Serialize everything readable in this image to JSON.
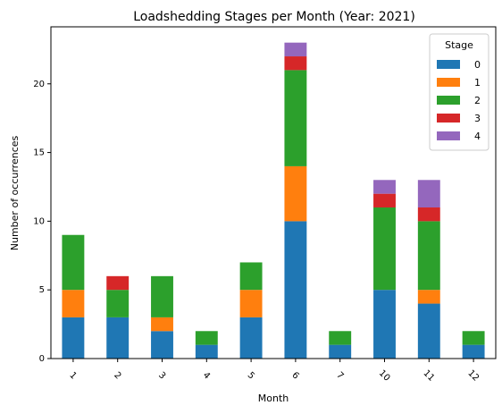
{
  "chart_data": {
    "type": "bar",
    "stacked": true,
    "title": "Loadshedding Stages per Month (Year: 2021)",
    "xlabel": "Month",
    "ylabel": "Number of occurrences",
    "categories": [
      "1",
      "2",
      "3",
      "4",
      "5",
      "6",
      "7",
      "10",
      "11",
      "12"
    ],
    "ylim": [
      0,
      24.15
    ],
    "yticks": [
      0,
      5,
      10,
      15,
      20
    ],
    "legend_title": "Stage",
    "legend_position": "top-right",
    "series": [
      {
        "name": "0",
        "color": "#1f77b4",
        "values": [
          3,
          3,
          2,
          1,
          3,
          10,
          1,
          5,
          4,
          1
        ]
      },
      {
        "name": "1",
        "color": "#ff7f0e",
        "values": [
          2,
          0,
          1,
          0,
          2,
          4,
          0,
          0,
          1,
          0
        ]
      },
      {
        "name": "2",
        "color": "#2ca02c",
        "values": [
          4,
          2,
          3,
          1,
          2,
          7,
          1,
          6,
          5,
          1
        ]
      },
      {
        "name": "3",
        "color": "#d62728",
        "values": [
          0,
          1,
          0,
          0,
          0,
          1,
          0,
          1,
          1,
          0
        ]
      },
      {
        "name": "4",
        "color": "#9467bd",
        "values": [
          0,
          0,
          0,
          0,
          0,
          1,
          0,
          1,
          2,
          0
        ]
      }
    ]
  }
}
